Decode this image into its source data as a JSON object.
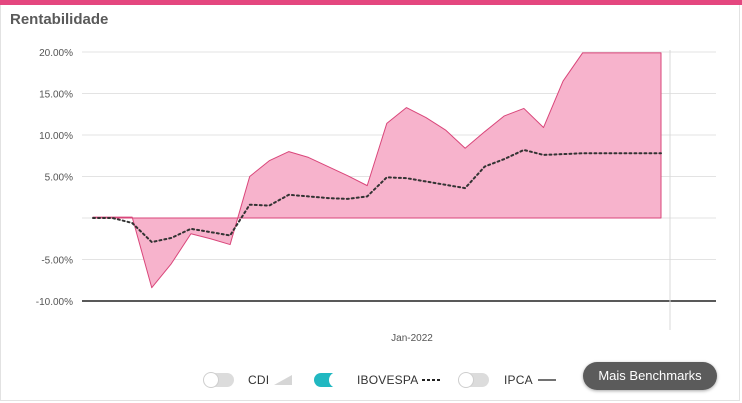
{
  "title": "Rentabilidade",
  "colors": {
    "accent": "#e4477f",
    "area_fill": "#f7b3cc",
    "area_stroke": "#d9467a",
    "ibovespa_line": "#333333",
    "toggle_on": "#21b8c1",
    "button_bg": "#5b5b5b"
  },
  "chart_data": {
    "type": "area",
    "ylim": [
      -10,
      20
    ],
    "yticks": [
      20,
      15,
      10,
      5,
      0,
      -5,
      -10
    ],
    "ytick_labels": [
      "20.00%",
      "15.00%",
      "10.00%",
      "5.00%",
      "",
      "-5.00%",
      "-10.00%"
    ],
    "x_tick_label": "Jan-2022",
    "grid": true,
    "series": [
      {
        "name": "CDI",
        "style": "area",
        "x": [
          0,
          1,
          2,
          3,
          4,
          5,
          6,
          7,
          8,
          9,
          10,
          11,
          12,
          13,
          14,
          15,
          16,
          17,
          18,
          19,
          20,
          21,
          22,
          23,
          24,
          25,
          26,
          27,
          28,
          29
        ],
        "values": [
          0.1,
          0.1,
          0.1,
          -8.4,
          -5.5,
          -1.9,
          -2.5,
          -3.2,
          5.0,
          6.9,
          8.0,
          7.3,
          6.2,
          5.1,
          3.9,
          11.4,
          13.3,
          12.1,
          10.6,
          8.4,
          10.4,
          12.3,
          13.2,
          10.9,
          16.5,
          19.9,
          19.9,
          19.9,
          19.9,
          19.9
        ]
      },
      {
        "name": "IBOVESPA",
        "style": "dotted",
        "x": [
          0,
          1,
          2,
          3,
          4,
          5,
          6,
          7,
          8,
          9,
          10,
          11,
          12,
          13,
          14,
          15,
          16,
          17,
          18,
          19,
          20,
          21,
          22,
          23,
          24,
          25,
          26,
          27,
          28,
          29
        ],
        "values": [
          0.0,
          0.0,
          -0.6,
          -2.9,
          -2.4,
          -1.3,
          -1.7,
          -2.1,
          1.6,
          1.5,
          2.8,
          2.6,
          2.4,
          2.3,
          2.6,
          4.9,
          4.8,
          4.4,
          4.0,
          3.6,
          6.2,
          7.1,
          8.2,
          7.6,
          7.7,
          7.8,
          7.8,
          7.8,
          7.8,
          7.8
        ]
      }
    ],
    "threshold": -10
  },
  "legend": {
    "items": [
      {
        "label": "CDI",
        "enabled": false,
        "marker": "area"
      },
      {
        "label": "IBOVESPA",
        "enabled": true,
        "marker": "dotted"
      },
      {
        "label": "IPCA",
        "enabled": false,
        "marker": "line"
      }
    ]
  },
  "button": {
    "label": "Mais Benchmarks"
  }
}
